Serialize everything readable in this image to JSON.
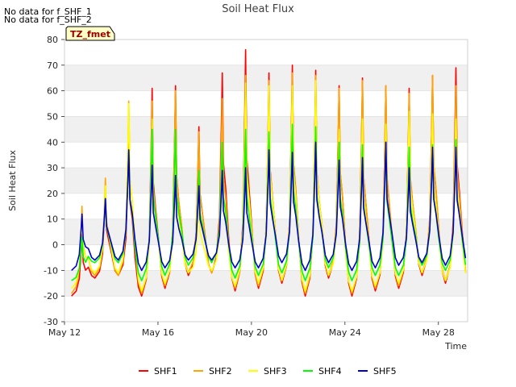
{
  "notes": [
    "No data for f_SHF_1",
    "No data for f_SHF_2"
  ],
  "tz_label": "TZ_fmet",
  "chart_data": {
    "type": "line",
    "title": "Soil Heat Flux",
    "xlabel": "Time",
    "ylabel": "Soil Heat Flux",
    "ylim": [
      -30,
      80
    ],
    "yticks": [
      -30,
      -20,
      -10,
      0,
      10,
      20,
      30,
      40,
      50,
      60,
      70,
      80
    ],
    "xlim_days": [
      12,
      29.25
    ],
    "xticks": [
      {
        "day": 12,
        "label": "May 12"
      },
      {
        "day": 16,
        "label": "May 16"
      },
      {
        "day": 20,
        "label": "May 20"
      },
      {
        "day": 24,
        "label": "May 24"
      },
      {
        "day": 28,
        "label": "May 28"
      }
    ],
    "grid_bands": true,
    "legend_position": "bottom-center",
    "days": [
      12.3,
      13.3,
      14.3,
      15.3,
      16.3,
      17.3,
      18.3,
      19.3,
      20.3,
      21.3,
      22.3,
      23.3,
      24.3,
      25.3,
      26.3,
      27.3,
      28.3,
      29.3
    ],
    "series": [
      {
        "name": "SHF1",
        "color": "#ff0000",
        "peaks": [
          4,
          21,
          40,
          61,
          62,
          46,
          67,
          76,
          67,
          70,
          68,
          62,
          65,
          62,
          61,
          66,
          69
        ],
        "troughs": [
          -20,
          -13,
          -12,
          -20,
          -17,
          -12,
          -11,
          -18,
          -17,
          -15,
          -20,
          -13,
          -20,
          -18,
          -17,
          -12,
          -15,
          -16
        ]
      },
      {
        "name": "SHF2",
        "color": "#ffa500",
        "peaks": [
          15,
          26,
          56,
          56,
          60,
          44,
          57,
          66,
          64,
          67,
          66,
          61,
          64,
          62,
          59,
          66,
          62
        ],
        "troughs": [
          -19,
          -12,
          -12,
          -19,
          -16,
          -11,
          -11,
          -17,
          -16,
          -14,
          -19,
          -12,
          -19,
          -17,
          -16,
          -11,
          -14,
          -15
        ]
      },
      {
        "name": "SHF3",
        "color": "#ffff00",
        "peaks": [
          12,
          23,
          55,
          49,
          44,
          18,
          40,
          63,
          62,
          62,
          64,
          45,
          49,
          47,
          52,
          51,
          49
        ],
        "troughs": [
          -17,
          -11,
          -11,
          -18,
          -15,
          -11,
          -10,
          -16,
          -15,
          -14,
          -18,
          -12,
          -18,
          -16,
          -15,
          -11,
          -14,
          -15
        ]
      },
      {
        "name": "SHF4",
        "color": "#00ff00",
        "peaks": [
          3,
          18,
          37,
          45,
          45,
          29,
          40,
          45,
          44,
          47,
          46,
          40,
          39,
          40,
          38,
          39,
          41
        ],
        "troughs": [
          -14,
          -7,
          -7,
          -14,
          -12,
          -8,
          -7,
          -13,
          -12,
          -11,
          -14,
          -9,
          -14,
          -12,
          -12,
          -8,
          -10,
          -11
        ]
      },
      {
        "name": "SHF5",
        "color": "#0000cd",
        "peaks": [
          12,
          18,
          37,
          31,
          27,
          23,
          29,
          30,
          37,
          36,
          40,
          33,
          34,
          40,
          30,
          38,
          38
        ],
        "troughs": [
          -10,
          -6,
          -6,
          -10,
          -9,
          -6,
          -6,
          -9,
          -9,
          -7,
          -10,
          -7,
          -10,
          -9,
          -8,
          -7,
          -8,
          -8
        ]
      }
    ]
  }
}
